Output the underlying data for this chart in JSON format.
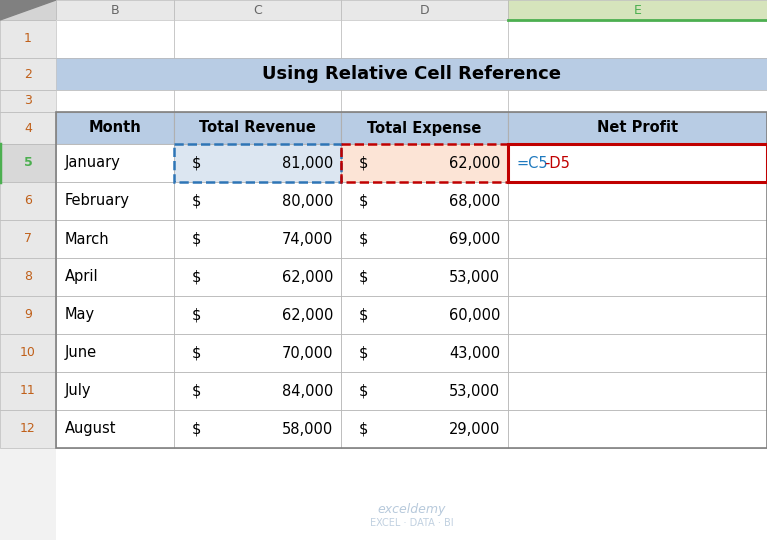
{
  "title": "Using Relative Cell Reference",
  "title_bg": "#b8cce4",
  "col_headers": [
    "Month",
    "Total Revenue",
    "Total Expense",
    "Net Profit"
  ],
  "header_bg": "#b8cce4",
  "months": [
    "January",
    "February",
    "March",
    "April",
    "May",
    "June",
    "July",
    "August"
  ],
  "revenues": [
    "81,000",
    "80,000",
    "74,000",
    "62,000",
    "62,000",
    "70,000",
    "84,000",
    "58,000"
  ],
  "expenses": [
    "62,000",
    "68,000",
    "69,000",
    "53,000",
    "60,000",
    "43,000",
    "53,000",
    "29,000"
  ],
  "net_profit_formula_blue": "=C5",
  "net_profit_formula_red": "-D5",
  "grid_color": "#b0b0b0",
  "bg_color": "#f2f2f2",
  "header_text_color": "#000000",
  "formula_text_color": "#1f7abf",
  "formula_minus_color": "#c00000",
  "revenue_row_bg": "#dce6f1",
  "expense_row_bg": "#fce4d6",
  "formula_border_color": "#c00000",
  "col_header_selected_bg": "#d6e4bc",
  "col_header_selected_border": "#4caf50",
  "col_header_bg": "#e8e8e8",
  "row_header_bg": "#e8e8e8",
  "row5_header_bg": "#d0d0d0",
  "row_header_selected_color": "#4caf50",
  "corner_triangle_color": "#808080",
  "watermark_color": "#a0b8d0",
  "watermark_text": "exceldemy",
  "watermark_sub": "EXCEL · DATA · BI"
}
